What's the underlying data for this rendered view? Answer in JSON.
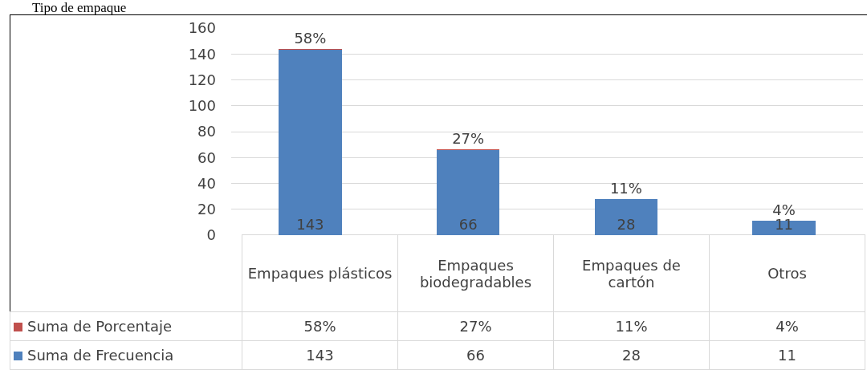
{
  "chart_data": {
    "type": "bar",
    "title": "Tipo de empaque",
    "stacked": true,
    "categories": [
      "Empaques plásticos",
      "Empaques biodegradables",
      "Empaques de cartón",
      "Otros"
    ],
    "series": [
      {
        "name": "Suma de Frecuencia",
        "color": "#4f81bd",
        "values": [
          143,
          66,
          28,
          11
        ],
        "value_labels": [
          "143",
          "66",
          "28",
          "11"
        ]
      },
      {
        "name": "Suma de Porcentaje",
        "color": "#c0504d",
        "values": [
          0.58,
          0.27,
          0.11,
          0.04
        ],
        "value_labels": [
          "58%",
          "27%",
          "11%",
          "4%"
        ]
      }
    ],
    "ylim": [
      0,
      160
    ],
    "yticks": [
      0,
      20,
      40,
      60,
      80,
      100,
      120,
      140,
      160
    ],
    "grid": "y",
    "data_labels": true,
    "legend": "bottom left"
  }
}
